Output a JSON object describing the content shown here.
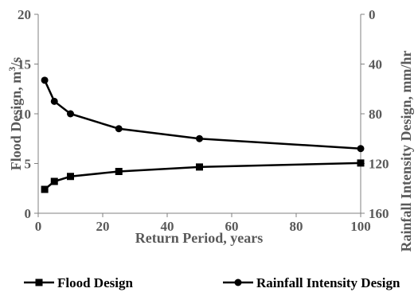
{
  "chart_data": {
    "type": "line",
    "title": "",
    "x": [
      2,
      5,
      10,
      25,
      50,
      100
    ],
    "xlabel": "Return Period, years",
    "xlim": [
      0,
      100
    ],
    "xticks": [
      0,
      20,
      40,
      60,
      80,
      100
    ],
    "ylabel_left_parts": [
      "Flood Design, m",
      "3",
      "/s"
    ],
    "ylim_left": [
      0,
      20
    ],
    "yticks_left": [
      0,
      5,
      10,
      15,
      20
    ],
    "ylabel_right": "Rainfall Intensity Design, mm/hr",
    "ylim_right": [
      0,
      160
    ],
    "yticks_right": [
      0,
      40,
      80,
      120,
      160
    ],
    "right_axis_inverted": true,
    "grid": false,
    "legend_position": "bottom",
    "series": [
      {
        "name": "Flood Design",
        "axis": "left",
        "marker": "square",
        "color": "#000000",
        "values": [
          2.4,
          3.2,
          3.7,
          4.2,
          4.65,
          5.05
        ]
      },
      {
        "name": "Rainfall Intensity Design",
        "axis": "right",
        "marker": "circle",
        "color": "#000000",
        "values": [
          53,
          70,
          80,
          92,
          100,
          108
        ]
      }
    ]
  }
}
